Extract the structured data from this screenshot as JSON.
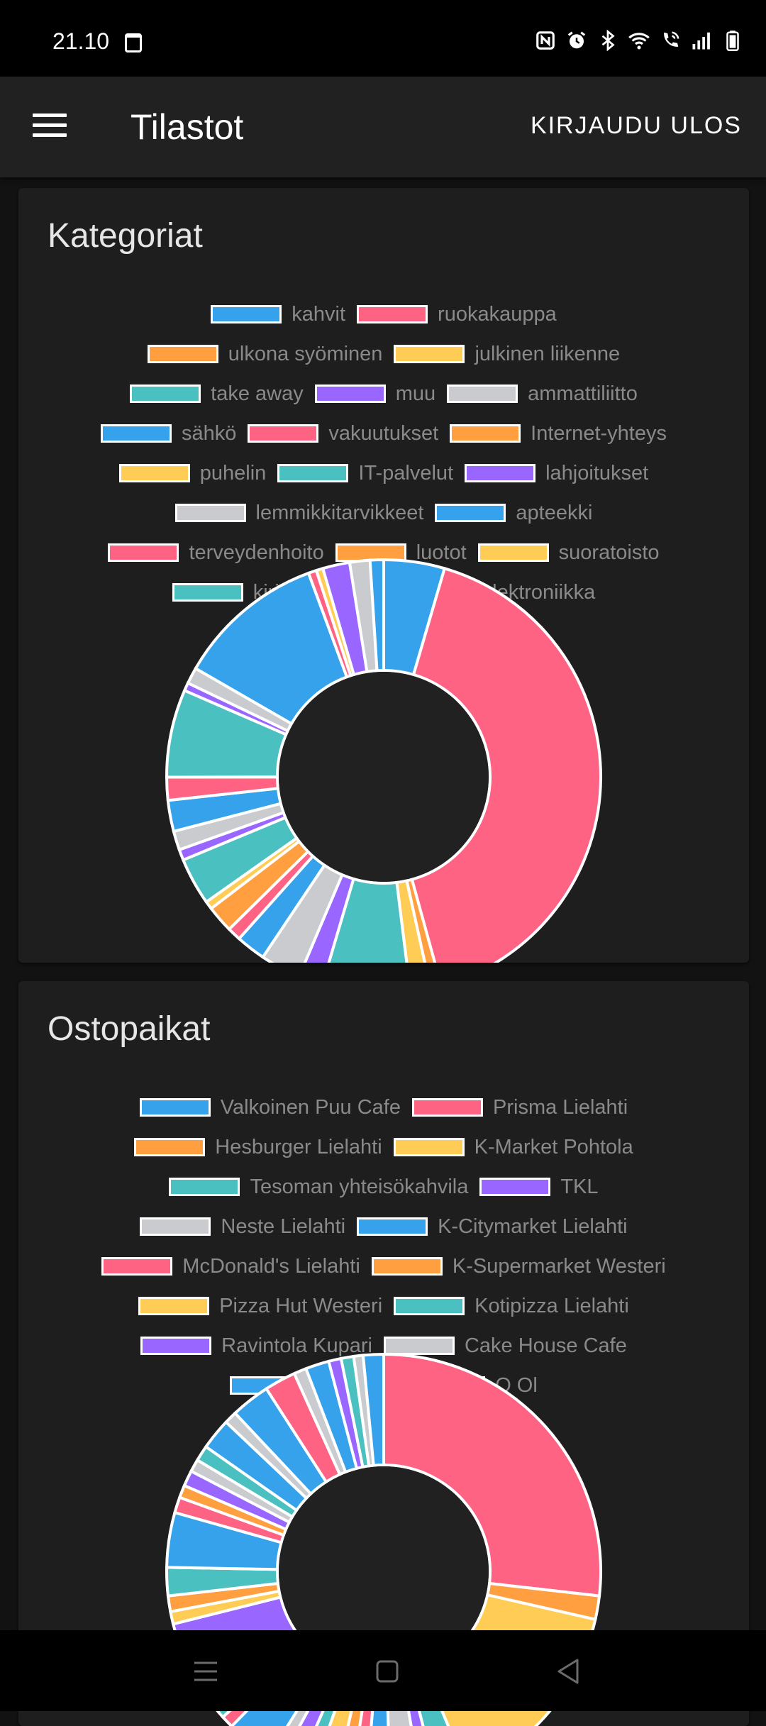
{
  "status": {
    "time": "21.10"
  },
  "app_bar": {
    "title": "Tilastot",
    "logout_label": "KIRJAUDU ULOS"
  },
  "colors": {
    "blue": "#36a2eb",
    "red": "#ff6384",
    "orange": "#ff9f40",
    "yellow": "#ffcd56",
    "teal": "#4bc0c0",
    "purple": "#9966ff",
    "grey": "#c9cbcf",
    "card": "#1e1e1e",
    "appbar": "#212121",
    "bg": "#121212"
  },
  "categories_card": {
    "title": "Kategoriat",
    "legend_rows": [
      [
        {
          "label": "kahvit",
          "color": "#36a2eb"
        },
        {
          "label": "ruokakauppa",
          "color": "#ff6384"
        }
      ],
      [
        {
          "label": "ulkona syöminen",
          "color": "#ff9f40"
        },
        {
          "label": "julkinen liikenne",
          "color": "#ffcd56"
        }
      ],
      [
        {
          "label": "take away",
          "color": "#4bc0c0"
        },
        {
          "label": "muu",
          "color": "#9966ff"
        },
        {
          "label": "ammattiliitto",
          "color": "#c9cbcf"
        }
      ],
      [
        {
          "label": "sähkö",
          "color": "#36a2eb"
        },
        {
          "label": "vakuutukset",
          "color": "#ff6384"
        },
        {
          "label": "Internet-yhteys",
          "color": "#ff9f40"
        }
      ],
      [
        {
          "label": "puhelin",
          "color": "#ffcd56"
        },
        {
          "label": "IT-palvelut",
          "color": "#4bc0c0"
        },
        {
          "label": "lahjoitukset",
          "color": "#9966ff"
        }
      ],
      [
        {
          "label": "lemmikkitarvikkeet",
          "color": "#c9cbcf"
        },
        {
          "label": "apteekki",
          "color": "#36a2eb"
        }
      ],
      [
        {
          "label": "terveydenhoito",
          "color": "#ff6384"
        },
        {
          "label": "luotot",
          "color": "#ff9f40"
        },
        {
          "label": "suoratoisto",
          "color": "#ffcd56"
        }
      ],
      [
        {
          "label": "kirjat",
          "color": "#4bc0c0"
        },
        {
          "label": "",
          "color": "#9966ff"
        },
        {
          "label": "elektroniikka",
          "color": "#c9cbcf"
        }
      ]
    ]
  },
  "places_card": {
    "title": "Ostopaikat",
    "legend_rows": [
      [
        {
          "label": "Valkoinen Puu Cafe",
          "color": "#36a2eb"
        },
        {
          "label": "Prisma Lielahti",
          "color": "#ff6384"
        }
      ],
      [
        {
          "label": "Hesburger Lielahti",
          "color": "#ff9f40"
        },
        {
          "label": "K-Market Pohtola",
          "color": "#ffcd56"
        }
      ],
      [
        {
          "label": "Tesoman yhteisökahvila",
          "color": "#4bc0c0"
        },
        {
          "label": "TKL",
          "color": "#9966ff"
        }
      ],
      [
        {
          "label": "Neste Lielahti",
          "color": "#c9cbcf"
        },
        {
          "label": "K-Citymarket Lielahti",
          "color": "#36a2eb"
        }
      ],
      [
        {
          "label": "McDonald's Lielahti",
          "color": "#ff6384"
        },
        {
          "label": "K-Supermarket Westeri",
          "color": "#ff9f40"
        }
      ],
      [
        {
          "label": "Pizza Hut Westeri",
          "color": "#ffcd56"
        },
        {
          "label": "Kotipizza Lielahti",
          "color": "#4bc0c0"
        }
      ],
      [
        {
          "label": "Ravintola Kupari",
          "color": "#9966ff"
        },
        {
          "label": "Cake House Cafe",
          "color": "#c9cbcf"
        }
      ],
      [
        {
          "label": "",
          "color": "#36a2eb"
        },
        {
          "label": "",
          "color": "#ff6384"
        },
        {
          "label": "O Ol",
          "color": "#ff9f40"
        }
      ]
    ]
  },
  "chart_data": [
    {
      "type": "pie",
      "title": "Kategoriat",
      "donut": true,
      "slices": [
        {
          "color": "#36a2eb",
          "value": 4.5
        },
        {
          "color": "#ff6384",
          "value": 41
        },
        {
          "color": "#ff9f40",
          "value": 0.8
        },
        {
          "color": "#ffcd56",
          "value": 1.5
        },
        {
          "color": "#4bc0c0",
          "value": 6.5
        },
        {
          "color": "#9966ff",
          "value": 1.8
        },
        {
          "color": "#c9cbcf",
          "value": 3
        },
        {
          "color": "#36a2eb",
          "value": 2.2
        },
        {
          "color": "#ff6384",
          "value": 1
        },
        {
          "color": "#ff9f40",
          "value": 2
        },
        {
          "color": "#ffcd56",
          "value": 0.6
        },
        {
          "color": "#4bc0c0",
          "value": 3.5
        },
        {
          "color": "#9966ff",
          "value": 0.8
        },
        {
          "color": "#c9cbcf",
          "value": 1.4
        },
        {
          "color": "#36a2eb",
          "value": 2.3
        },
        {
          "color": "#ff6384",
          "value": 1.7
        },
        {
          "color": "#4bc0c0",
          "value": 6.5
        },
        {
          "color": "#9966ff",
          "value": 0.6
        },
        {
          "color": "#c9cbcf",
          "value": 1.2
        },
        {
          "color": "#36a2eb",
          "value": 11
        },
        {
          "color": "#ff6384",
          "value": 0.6
        },
        {
          "color": "#ffcd56",
          "value": 0.5
        },
        {
          "color": "#9966ff",
          "value": 2
        },
        {
          "color": "#c9cbcf",
          "value": 1.5
        },
        {
          "color": "#36a2eb",
          "value": 1
        }
      ]
    },
    {
      "type": "pie",
      "title": "Ostopaikat",
      "donut": true,
      "slices": [
        {
          "color": "#ff6384",
          "value": 23
        },
        {
          "color": "#ff9f40",
          "value": 1.5
        },
        {
          "color": "#ffcd56",
          "value": 13
        },
        {
          "color": "#4bc0c0",
          "value": 2
        },
        {
          "color": "#9966ff",
          "value": 1
        },
        {
          "color": "#c9cbcf",
          "value": 2
        },
        {
          "color": "#36a2eb",
          "value": 1.5
        },
        {
          "color": "#ff6384",
          "value": 1
        },
        {
          "color": "#ff9f40",
          "value": 1
        },
        {
          "color": "#ffcd56",
          "value": 1.5
        },
        {
          "color": "#4bc0c0",
          "value": 1
        },
        {
          "color": "#9966ff",
          "value": 1.2
        },
        {
          "color": "#c9cbcf",
          "value": 0.8
        },
        {
          "color": "#36a2eb",
          "value": 3
        },
        {
          "color": "#ff6384",
          "value": 0.8
        },
        {
          "color": "#4bc0c0",
          "value": 1.2
        },
        {
          "color": "#9966ff",
          "value": 5.5
        },
        {
          "color": "#ffcd56",
          "value": 0.8
        },
        {
          "color": "#ff9f40",
          "value": 1
        },
        {
          "color": "#4bc0c0",
          "value": 1.8
        },
        {
          "color": "#36a2eb",
          "value": 3.5
        },
        {
          "color": "#ff6384",
          "value": 1
        },
        {
          "color": "#ff9f40",
          "value": 0.8
        },
        {
          "color": "#9966ff",
          "value": 1
        },
        {
          "color": "#c9cbcf",
          "value": 0.8
        },
        {
          "color": "#4bc0c0",
          "value": 1
        },
        {
          "color": "#36a2eb",
          "value": 2
        },
        {
          "color": "#c9cbcf",
          "value": 0.8
        },
        {
          "color": "#36a2eb",
          "value": 2.5
        },
        {
          "color": "#ff6384",
          "value": 2
        },
        {
          "color": "#c9cbcf",
          "value": 0.8
        },
        {
          "color": "#36a2eb",
          "value": 1.5
        },
        {
          "color": "#9966ff",
          "value": 0.8
        },
        {
          "color": "#4bc0c0",
          "value": 0.8
        },
        {
          "color": "#c9cbcf",
          "value": 0.6
        },
        {
          "color": "#36a2eb",
          "value": 1.3
        }
      ]
    }
  ]
}
